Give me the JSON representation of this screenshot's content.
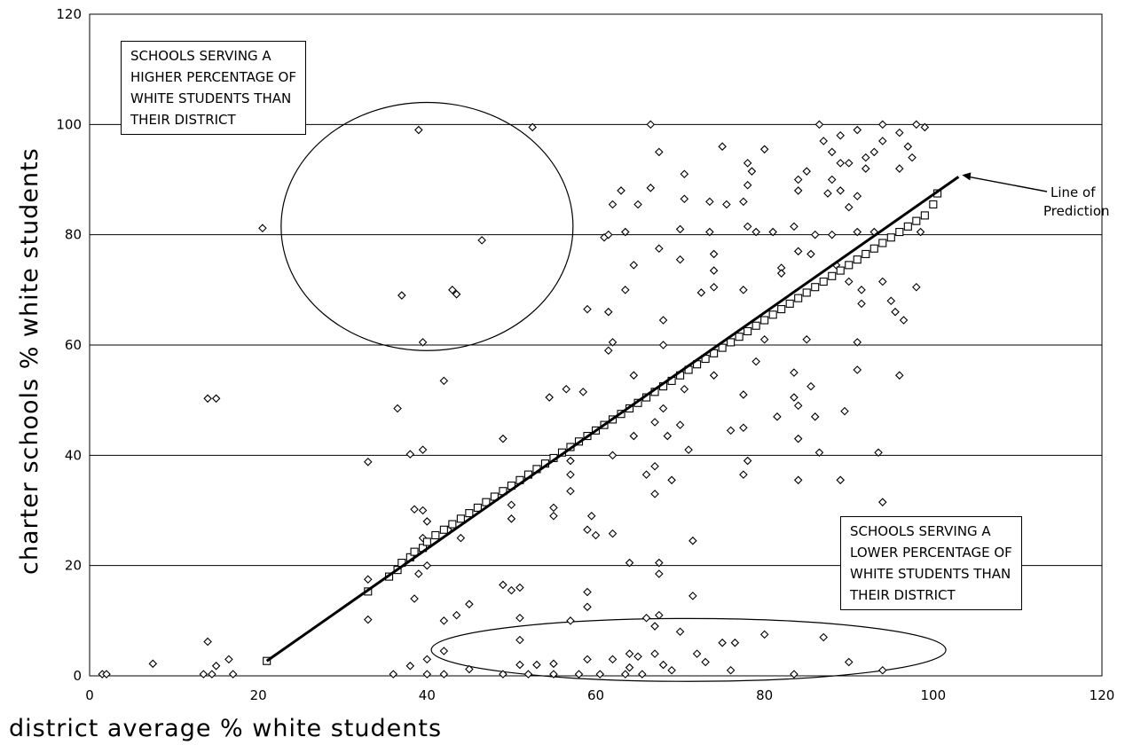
{
  "chart_data": {
    "type": "scatter",
    "xlabel": "district average % white students",
    "ylabel": "charter schools % white students",
    "xlim": [
      0,
      120
    ],
    "ylim": [
      0,
      120
    ],
    "x_ticks": [
      "0",
      "20",
      "40",
      "60",
      "80",
      "100",
      "120"
    ],
    "y_ticks": [
      "0",
      "20",
      "40",
      "60",
      "80",
      "100",
      "120"
    ],
    "grid": "horizontal",
    "series": [
      {
        "marker": "diamond",
        "points": [
          [
            1.5,
            0.3
          ],
          [
            2,
            0.3
          ],
          [
            7.5,
            2.2
          ],
          [
            13.5,
            0.3
          ],
          [
            14.5,
            0.3
          ],
          [
            14,
            6.2
          ],
          [
            15,
            1.8
          ],
          [
            16.5,
            3
          ],
          [
            17,
            0.3
          ],
          [
            14,
            50.3
          ],
          [
            15,
            50.3
          ],
          [
            20.5,
            81.2
          ],
          [
            33,
            38.8
          ],
          [
            33,
            17.5
          ],
          [
            33,
            10.2
          ],
          [
            36,
            0.3
          ],
          [
            36.5,
            48.5
          ],
          [
            37,
            69
          ],
          [
            38,
            40.2
          ],
          [
            38.5,
            30.2
          ],
          [
            38,
            1.8
          ],
          [
            38.5,
            14
          ],
          [
            39,
            18.5
          ],
          [
            39,
            99
          ],
          [
            39.5,
            60.5
          ],
          [
            39.5,
            41
          ],
          [
            39.5,
            30
          ],
          [
            39.5,
            25
          ],
          [
            40,
            28
          ],
          [
            40,
            20
          ],
          [
            40,
            3
          ],
          [
            40,
            0.3
          ],
          [
            42,
            53.5
          ],
          [
            42,
            10
          ],
          [
            42,
            4.5
          ],
          [
            42,
            0.3
          ],
          [
            42.5,
            26.5
          ],
          [
            43,
            70
          ],
          [
            43.5,
            69.2
          ],
          [
            43.5,
            11
          ],
          [
            44,
            25
          ],
          [
            45,
            13
          ],
          [
            45,
            1.2
          ],
          [
            46.5,
            79
          ],
          [
            49,
            43
          ],
          [
            49,
            16.5
          ],
          [
            49,
            0.3
          ],
          [
            50,
            15.5
          ],
          [
            50,
            31
          ],
          [
            50,
            28.5
          ],
          [
            51,
            16
          ],
          [
            51,
            10.5
          ],
          [
            51,
            6.5
          ],
          [
            51,
            2
          ],
          [
            52,
            0.3
          ],
          [
            52.5,
            99.5
          ],
          [
            53,
            2
          ],
          [
            54.5,
            50.5
          ],
          [
            55,
            30.5
          ],
          [
            55,
            29
          ],
          [
            55,
            2.2
          ],
          [
            55,
            0.3
          ],
          [
            56.5,
            52
          ],
          [
            57,
            39
          ],
          [
            57,
            36.5
          ],
          [
            57,
            33.5
          ],
          [
            57,
            10
          ],
          [
            58,
            0.3
          ],
          [
            58.5,
            51.5
          ],
          [
            59,
            66.5
          ],
          [
            59,
            26.5
          ],
          [
            59,
            15.2
          ],
          [
            59,
            12.5
          ],
          [
            59,
            3
          ],
          [
            59.5,
            29
          ],
          [
            60,
            25.5
          ],
          [
            60.5,
            0.3
          ],
          [
            61,
            79.5
          ],
          [
            61.5,
            80
          ],
          [
            61.5,
            66
          ],
          [
            61.5,
            59
          ],
          [
            62,
            85.5
          ],
          [
            62,
            60.5
          ],
          [
            62,
            40
          ],
          [
            62,
            25.8
          ],
          [
            62,
            3
          ],
          [
            63,
            88
          ],
          [
            63.5,
            80.5
          ],
          [
            63.5,
            70
          ],
          [
            63.5,
            0.3
          ],
          [
            64,
            20.5
          ],
          [
            64,
            4
          ],
          [
            64,
            1.5
          ],
          [
            64.5,
            74.5
          ],
          [
            64.5,
            54.5
          ],
          [
            64.5,
            43.5
          ],
          [
            65,
            85.5
          ],
          [
            65,
            3.5
          ],
          [
            65.5,
            0.3
          ],
          [
            66,
            36.5
          ],
          [
            66,
            10.5
          ],
          [
            66.5,
            100
          ],
          [
            66.5,
            88.5
          ],
          [
            67,
            46
          ],
          [
            67,
            38
          ],
          [
            67,
            33
          ],
          [
            67,
            9
          ],
          [
            67,
            4
          ],
          [
            67.5,
            95
          ],
          [
            67.5,
            77.5
          ],
          [
            67.5,
            20.5
          ],
          [
            67.5,
            18.5
          ],
          [
            67.5,
            11
          ],
          [
            68,
            64.5
          ],
          [
            68,
            60
          ],
          [
            68,
            48.5
          ],
          [
            68,
            2
          ],
          [
            68.5,
            43.5
          ],
          [
            69,
            35.5
          ],
          [
            69,
            1
          ],
          [
            70,
            81
          ],
          [
            70,
            75.5
          ],
          [
            70,
            45.5
          ],
          [
            70,
            8
          ],
          [
            70.5,
            91
          ],
          [
            70.5,
            86.5
          ],
          [
            70.5,
            52
          ],
          [
            71,
            41
          ],
          [
            71.5,
            24.5
          ],
          [
            71.5,
            14.5
          ],
          [
            72,
            4
          ],
          [
            72.5,
            69.5
          ],
          [
            73,
            2.5
          ],
          [
            73.5,
            86
          ],
          [
            73.5,
            80.5
          ],
          [
            74,
            76.5
          ],
          [
            74,
            73.5
          ],
          [
            74,
            70.5
          ],
          [
            74,
            54.5
          ],
          [
            75,
            96
          ],
          [
            75,
            6
          ],
          [
            75.5,
            85.5
          ],
          [
            76,
            44.5
          ],
          [
            76,
            1
          ],
          [
            76.5,
            6
          ],
          [
            77.5,
            86
          ],
          [
            77.5,
            70
          ],
          [
            77.5,
            51
          ],
          [
            77.5,
            45
          ],
          [
            77.5,
            36.5
          ],
          [
            78,
            93
          ],
          [
            78,
            89
          ],
          [
            78,
            81.5
          ],
          [
            78,
            39
          ],
          [
            78.5,
            91.5
          ],
          [
            79,
            80.5
          ],
          [
            79,
            57
          ],
          [
            80,
            95.5
          ],
          [
            80,
            61
          ],
          [
            80,
            7.5
          ],
          [
            81,
            80.5
          ],
          [
            81.5,
            47
          ],
          [
            82,
            74
          ],
          [
            82,
            73
          ],
          [
            83.5,
            81.5
          ],
          [
            83.5,
            55
          ],
          [
            83.5,
            50.5
          ],
          [
            83.5,
            0.3
          ],
          [
            84,
            90
          ],
          [
            84,
            88
          ],
          [
            84,
            77
          ],
          [
            84,
            49
          ],
          [
            84,
            43
          ],
          [
            84,
            35.5
          ],
          [
            85,
            91.5
          ],
          [
            85,
            61
          ],
          [
            85.5,
            76.5
          ],
          [
            85.5,
            52.5
          ],
          [
            86,
            80
          ],
          [
            86,
            47
          ],
          [
            86.5,
            100
          ],
          [
            86.5,
            40.5
          ],
          [
            87,
            97
          ],
          [
            87,
            7
          ],
          [
            87.5,
            87.5
          ],
          [
            88,
            95
          ],
          [
            88,
            90
          ],
          [
            88,
            80
          ],
          [
            88.5,
            74.5
          ],
          [
            89,
            98
          ],
          [
            89,
            93
          ],
          [
            89,
            88
          ],
          [
            89,
            35.5
          ],
          [
            89.5,
            48
          ],
          [
            90,
            93
          ],
          [
            90,
            85
          ],
          [
            90,
            71.5
          ],
          [
            90,
            2.5
          ],
          [
            91,
            99
          ],
          [
            91,
            87
          ],
          [
            91,
            60.5
          ],
          [
            91,
            55.5
          ],
          [
            91,
            80.5
          ],
          [
            91.5,
            70
          ],
          [
            91.5,
            67.5
          ],
          [
            92,
            94
          ],
          [
            92,
            92
          ],
          [
            93,
            95
          ],
          [
            93,
            80.5
          ],
          [
            93.5,
            40.5
          ],
          [
            94,
            100
          ],
          [
            94,
            97
          ],
          [
            94,
            71.5
          ],
          [
            94,
            31.5
          ],
          [
            94,
            1
          ],
          [
            95,
            68
          ],
          [
            95.5,
            66
          ],
          [
            96,
            98.5
          ],
          [
            96,
            92
          ],
          [
            96,
            54.5
          ],
          [
            96.5,
            64.5
          ],
          [
            97,
            96
          ],
          [
            97.5,
            94
          ],
          [
            98,
            100
          ],
          [
            98,
            70.5
          ],
          [
            98.5,
            80.5
          ],
          [
            99,
            99.5
          ]
        ]
      },
      {
        "marker": "square",
        "points": [
          [
            21,
            2.7
          ],
          [
            33,
            15.3
          ],
          [
            35.5,
            18
          ],
          [
            36.5,
            19.2
          ],
          [
            37,
            20.5
          ],
          [
            38,
            21.5
          ],
          [
            38.5,
            22.5
          ],
          [
            39.5,
            23.2
          ],
          [
            40,
            24.3
          ],
          [
            41,
            25.5
          ],
          [
            42,
            26.5
          ],
          [
            43,
            27.5
          ],
          [
            44,
            28.5
          ],
          [
            45,
            29.5
          ],
          [
            46,
            30.5
          ],
          [
            47,
            31.5
          ],
          [
            48,
            32.5
          ],
          [
            49,
            33.5
          ],
          [
            50,
            34.5
          ],
          [
            51,
            35.5
          ],
          [
            52,
            36.5
          ],
          [
            53,
            37.5
          ],
          [
            54,
            38.5
          ],
          [
            55,
            39.5
          ],
          [
            56,
            40.5
          ],
          [
            57,
            41.5
          ],
          [
            58,
            42.5
          ],
          [
            59,
            43.5
          ],
          [
            60,
            44.5
          ],
          [
            61,
            45.5
          ],
          [
            62,
            46.5
          ],
          [
            63,
            47.5
          ],
          [
            64,
            48.5
          ],
          [
            65,
            49.5
          ],
          [
            66,
            50.5
          ],
          [
            67,
            51.5
          ],
          [
            68,
            52.5
          ],
          [
            69,
            53.5
          ],
          [
            70,
            54.5
          ],
          [
            71,
            55.5
          ],
          [
            72,
            56.5
          ],
          [
            73,
            57.5
          ],
          [
            74,
            58.5
          ],
          [
            75,
            59.5
          ],
          [
            76,
            60.5
          ],
          [
            77,
            61.5
          ],
          [
            78,
            62.5
          ],
          [
            79,
            63.5
          ],
          [
            80,
            64.5
          ],
          [
            81,
            65.5
          ],
          [
            82,
            66.5
          ],
          [
            83,
            67.5
          ],
          [
            84,
            68.5
          ],
          [
            85,
            69.5
          ],
          [
            86,
            70.5
          ],
          [
            87,
            71.5
          ],
          [
            88,
            72.5
          ],
          [
            89,
            73.5
          ],
          [
            90,
            74.5
          ],
          [
            91,
            75.5
          ],
          [
            92,
            76.5
          ],
          [
            93,
            77.5
          ],
          [
            94,
            78.5
          ],
          [
            95,
            79.5
          ],
          [
            96,
            80.5
          ],
          [
            97,
            81.5
          ],
          [
            98,
            82.5
          ],
          [
            99,
            83.5
          ],
          [
            100,
            85.5
          ],
          [
            100.5,
            87.5
          ]
        ]
      }
    ],
    "prediction_line": {
      "x": [
        21,
        103
      ],
      "y": [
        2.7,
        90.5
      ]
    },
    "ellipses": [
      {
        "cx": 40,
        "cy": 81.5,
        "rx": 17.3,
        "ry": 22.5
      },
      {
        "cx": 71,
        "cy": 4.7,
        "rx": 30.5,
        "ry": 5.7
      }
    ],
    "line_label": [
      "Line of",
      "Prediction"
    ],
    "annotations": {
      "upper": [
        "SCHOOLS SERVING A",
        "HIGHER PERCENTAGE OF",
        "WHITE STUDENTS THAN",
        "THEIR DISTRICT"
      ],
      "lower": [
        "SCHOOLS SERVING A",
        "LOWER PERCENTAGE OF",
        "WHITE STUDENTS THAN",
        "THEIR DISTRICT"
      ]
    }
  }
}
